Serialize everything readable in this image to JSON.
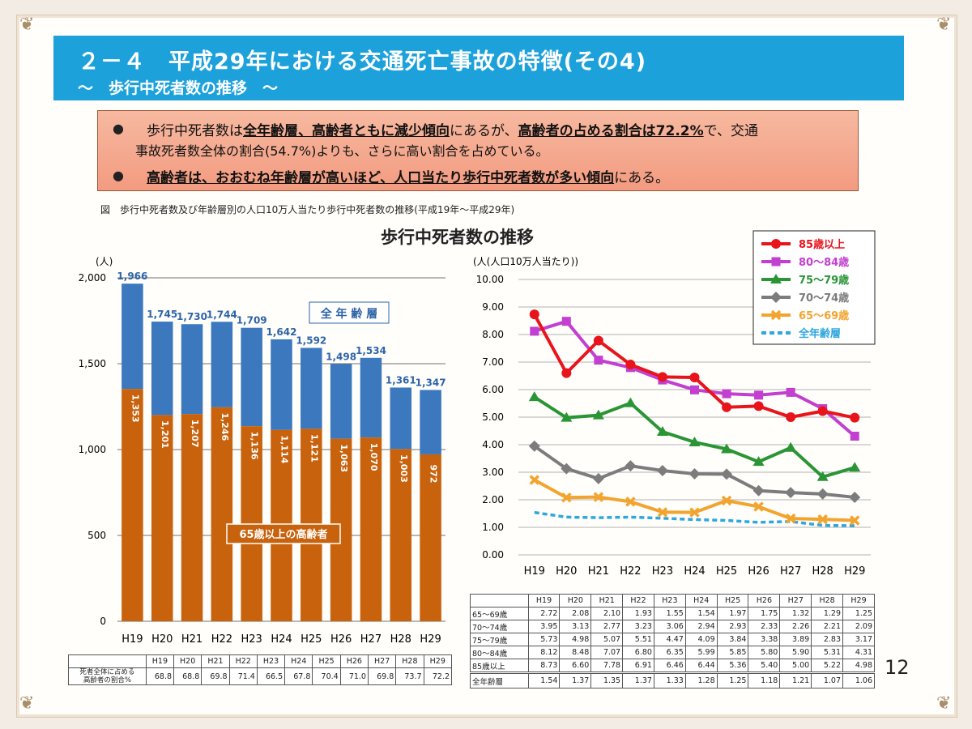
{
  "header": {
    "title": "２－４　平成29年における交通死亡事故の特徴(その4)",
    "subtitle": "～　歩行中死者数の推移　～"
  },
  "summary": {
    "b1": {
      "t1": "歩行中死者数は",
      "u1": "全年齢層、高齢者ともに減少傾向",
      "t2": "にあるが、",
      "u2": "高齢者の占める割合は72.2%",
      "t3": "で、交通",
      "line2": "事故死者数全体の割合(54.7%)よりも、さらに高い割合を占めている。"
    },
    "b2": {
      "u1": "高齢者は、おおむね年齢層が高いほど、人口当たり歩行中死者数が多い傾向",
      "t1": "にある。"
    }
  },
  "figure_caption": "図　歩行中死者数及び年齢層別の人口10万人当たり歩行中死者数の推移(平成19年～平成29年)",
  "chart_title": "歩行中死者数の推移",
  "page_number": "12",
  "colors": {
    "title_bar": "#1da1db",
    "bar_total": "#3b78bd",
    "bar_elderly": "#c8620d",
    "s85": "#e8141c",
    "s80": "#c23fd0",
    "s75": "#2a9535",
    "s70": "#7c7c7c",
    "s65": "#f2a42e",
    "sall": "#2ea7de"
  },
  "chart_data": [
    {
      "type": "bar",
      "ylabel": "(人)",
      "ylim": [
        0,
        2000
      ],
      "yticks": [
        0,
        500,
        1000,
        1500,
        2000
      ],
      "ytick_labels": [
        "0",
        "500",
        "1,000",
        "1,500",
        "2,000"
      ],
      "categories": [
        "H19",
        "H20",
        "H21",
        "H22",
        "H23",
        "H24",
        "H25",
        "H26",
        "H27",
        "H28",
        "H29"
      ],
      "series": [
        {
          "name": "全年齢層",
          "values": [
            1966,
            1745,
            1730,
            1744,
            1709,
            1642,
            1592,
            1498,
            1534,
            1361,
            1347
          ],
          "labels": [
            "1,966",
            "1,745",
            "1,730",
            "1,744",
            "1,709",
            "1,642",
            "1,592",
            "1,498",
            "1,534",
            "1,361",
            "1,347"
          ]
        },
        {
          "name": "65歳以上の高齢者",
          "values": [
            1353,
            1201,
            1207,
            1246,
            1136,
            1114,
            1121,
            1063,
            1070,
            1003,
            972
          ],
          "labels": [
            "1,353",
            "1,201",
            "1,207",
            "1,246",
            "1,136",
            "1,114",
            "1,121",
            "1,063",
            "1,070",
            "1,003",
            "972"
          ]
        }
      ],
      "series_labels": {
        "total": "全 年 齢 層",
        "elderly": "65歳以上の高齢者"
      },
      "table": {
        "row_label": "死者全体に占める 高齢者の割合%",
        "row_label_l1": "死者全体に占める",
        "row_label_l2": "高齢者の割合%",
        "values": [
          "68.8",
          "68.8",
          "69.8",
          "71.4",
          "66.5",
          "67.8",
          "70.4",
          "71.0",
          "69.8",
          "73.7",
          "72.2"
        ]
      }
    },
    {
      "type": "line",
      "ylabel": "(人(人口10万人当たり))",
      "ylim": [
        0,
        10
      ],
      "yticks": [
        0,
        1,
        2,
        3,
        4,
        5,
        6,
        7,
        8,
        9,
        10
      ],
      "ytick_labels": [
        "0.00",
        "1.00",
        "2.00",
        "3.00",
        "4.00",
        "5.00",
        "6.00",
        "7.00",
        "8.00",
        "9.00",
        "10.00"
      ],
      "categories": [
        "H19",
        "H20",
        "H21",
        "H22",
        "H23",
        "H24",
        "H25",
        "H26",
        "H27",
        "H28",
        "H29"
      ],
      "series": [
        {
          "name": "85歳以上",
          "key": "s85",
          "marker": "circle",
          "values": [
            8.73,
            6.6,
            7.78,
            6.91,
            6.46,
            6.44,
            5.36,
            5.4,
            5.0,
            5.22,
            4.98
          ]
        },
        {
          "name": "80～84歳",
          "key": "s80",
          "marker": "square",
          "values": [
            8.12,
            8.48,
            7.07,
            6.8,
            6.35,
            5.99,
            5.85,
            5.8,
            5.9,
            5.31,
            4.31
          ]
        },
        {
          "name": "75～79歳",
          "key": "s75",
          "marker": "triangle",
          "values": [
            5.73,
            4.98,
            5.07,
            5.51,
            4.47,
            4.09,
            3.84,
            3.38,
            3.89,
            2.83,
            3.17
          ]
        },
        {
          "name": "70～74歳",
          "key": "s70",
          "marker": "diamond",
          "values": [
            3.95,
            3.13,
            2.77,
            3.23,
            3.06,
            2.94,
            2.93,
            2.33,
            2.26,
            2.21,
            2.09
          ]
        },
        {
          "name": "65～69歳",
          "key": "s65",
          "marker": "x",
          "values": [
            2.72,
            2.08,
            2.1,
            1.93,
            1.55,
            1.54,
            1.97,
            1.75,
            1.32,
            1.29,
            1.25
          ]
        },
        {
          "name": "全年齢層",
          "key": "sall",
          "marker": "none",
          "dashed": true,
          "values": [
            1.54,
            1.37,
            1.35,
            1.37,
            1.33,
            1.28,
            1.25,
            1.18,
            1.21,
            1.07,
            1.06
          ]
        }
      ],
      "table": {
        "rows": [
          {
            "label": "65～69歳",
            "values": [
              "2.72",
              "2.08",
              "2.10",
              "1.93",
              "1.55",
              "1.54",
              "1.97",
              "1.75",
              "1.32",
              "1.29",
              "1.25"
            ]
          },
          {
            "label": "70～74歳",
            "values": [
              "3.95",
              "3.13",
              "2.77",
              "3.23",
              "3.06",
              "2.94",
              "2.93",
              "2.33",
              "2.26",
              "2.21",
              "2.09"
            ]
          },
          {
            "label": "75～79歳",
            "values": [
              "5.73",
              "4.98",
              "5.07",
              "5.51",
              "4.47",
              "4.09",
              "3.84",
              "3.38",
              "3.89",
              "2.83",
              "3.17"
            ]
          },
          {
            "label": "80～84歳",
            "values": [
              "8.12",
              "8.48",
              "7.07",
              "6.80",
              "6.35",
              "5.99",
              "5.85",
              "5.80",
              "5.90",
              "5.31",
              "4.31"
            ]
          },
          {
            "label": "85歳以上",
            "values": [
              "8.73",
              "6.60",
              "7.78",
              "6.91",
              "6.46",
              "6.44",
              "5.36",
              "5.40",
              "5.00",
              "5.22",
              "4.98"
            ]
          },
          {
            "label": "全年齢層",
            "values": [
              "1.54",
              "1.37",
              "1.35",
              "1.37",
              "1.33",
              "1.28",
              "1.25",
              "1.18",
              "1.21",
              "1.07",
              "1.06"
            ]
          }
        ]
      }
    }
  ]
}
